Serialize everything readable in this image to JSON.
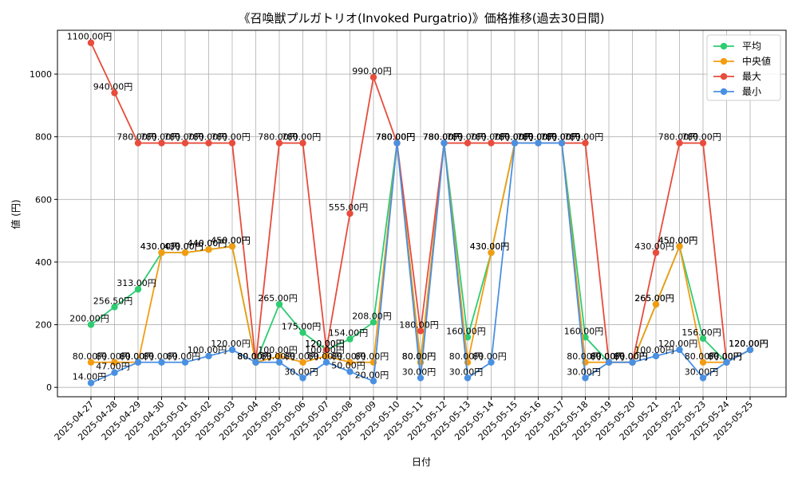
{
  "chart_data": {
    "type": "line",
    "title": "《召喚獣プルガトリオ(Invoked Purgatrio)》価格推移(過去30日間)",
    "xlabel": "日付",
    "ylabel": "値 (円)",
    "ylim": [
      -30,
      1140
    ],
    "yticks": [
      0,
      200,
      400,
      600,
      800,
      1000
    ],
    "grid": true,
    "legend_position": "top-right",
    "categories": [
      "2025-04-27",
      "2025-04-28",
      "2025-04-29",
      "2025-04-30",
      "2025-05-01",
      "2025-05-02",
      "2025-05-03",
      "2025-05-04",
      "2025-05-05",
      "2025-05-06",
      "2025-05-07",
      "2025-05-08",
      "2025-05-09",
      "2025-05-10",
      "2025-05-11",
      "2025-05-12",
      "2025-05-13",
      "2025-05-14",
      "2025-05-15",
      "2025-05-16",
      "2025-05-17",
      "2025-05-18",
      "2025-05-19",
      "2025-05-20",
      "2025-05-21",
      "2025-05-22",
      "2025-05-23",
      "2025-05-24",
      "2025-05-25"
    ],
    "label_suffix": "円",
    "series": [
      {
        "name": "平均",
        "color": "#2ecc71",
        "values": [
          200,
          256.5,
          313,
          430,
          430,
          440,
          450,
          80,
          265,
          175,
          120,
          154,
          208,
          780,
          80,
          780,
          160,
          430,
          780,
          780,
          780,
          160,
          80,
          80,
          265,
          450,
          156,
          80,
          120
        ]
      },
      {
        "name": "中央値",
        "color": "#f39c12",
        "values": [
          80,
          80,
          80,
          430,
          430,
          440,
          450,
          80,
          100,
          80,
          100,
          80,
          80,
          780,
          80,
          780,
          80,
          430,
          780,
          780,
          780,
          80,
          80,
          80,
          265,
          450,
          80,
          80,
          120
        ]
      },
      {
        "name": "最大",
        "color": "#e74c3c",
        "values": [
          1100,
          940,
          780,
          780,
          780,
          780,
          780,
          80,
          780,
          780,
          120,
          555,
          990,
          780,
          180,
          780,
          780,
          780,
          780,
          780,
          780,
          780,
          80,
          80,
          430,
          780,
          780,
          80,
          120
        ]
      },
      {
        "name": "最小",
        "color": "#4a90e2",
        "values": [
          14,
          47,
          80,
          80,
          80,
          100,
          120,
          80,
          80,
          30,
          80,
          50,
          20,
          780,
          30,
          780,
          30,
          80,
          780,
          780,
          780,
          30,
          80,
          80,
          100,
          120,
          30,
          80,
          120
        ]
      }
    ]
  }
}
